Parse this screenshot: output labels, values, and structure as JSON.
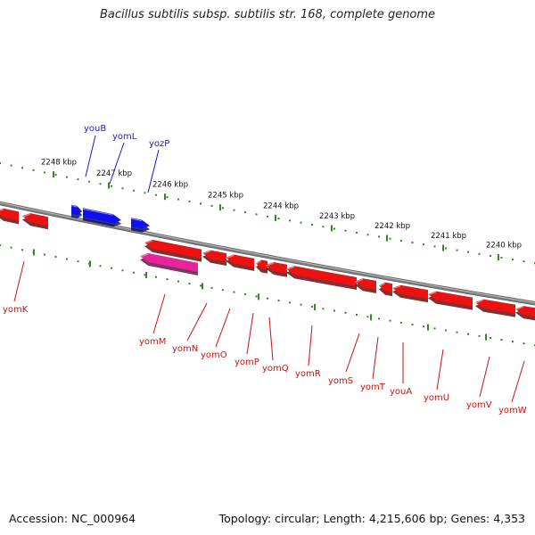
{
  "title": "Bacillus subtilis subsp. subtilis str. 168, complete genome",
  "footer": {
    "accession": "Accession: NC_000964",
    "summary": "Topology: circular; Length: 4,215,606 bp; Genes: 4,353"
  },
  "colors": {
    "backbone": "#7f7f7f",
    "tick": "#2e8b22",
    "forward_gene": "#1010ee",
    "forward_label": "#1a1acc",
    "reverse_gene": "#ee1111",
    "reverse_label": "#cc1111",
    "highlight_gene": "#e8249a"
  },
  "ticks": [
    {
      "label": "2248 kbp"
    },
    {
      "label": "2247 kbp"
    },
    {
      "label": "2246 kbp"
    },
    {
      "label": "2245 kbp"
    },
    {
      "label": "2244 kbp"
    },
    {
      "label": "2243 kbp"
    },
    {
      "label": "2242 kbp"
    },
    {
      "label": "2241 kbp"
    },
    {
      "label": "2240 kbp"
    }
  ],
  "forward_genes": [
    {
      "name": "youB"
    },
    {
      "name": "yomL"
    },
    {
      "name": "yozP"
    }
  ],
  "reverse_genes": [
    {
      "name": "yomK"
    },
    {
      "name": "yomM"
    },
    {
      "name": "yomN"
    },
    {
      "name": "yomO"
    },
    {
      "name": "yomP"
    },
    {
      "name": "yomQ"
    },
    {
      "name": "yomR"
    },
    {
      "name": "yomS"
    },
    {
      "name": "yomT"
    },
    {
      "name": "youA"
    },
    {
      "name": "yomU"
    },
    {
      "name": "yomV"
    },
    {
      "name": "yomW"
    }
  ]
}
